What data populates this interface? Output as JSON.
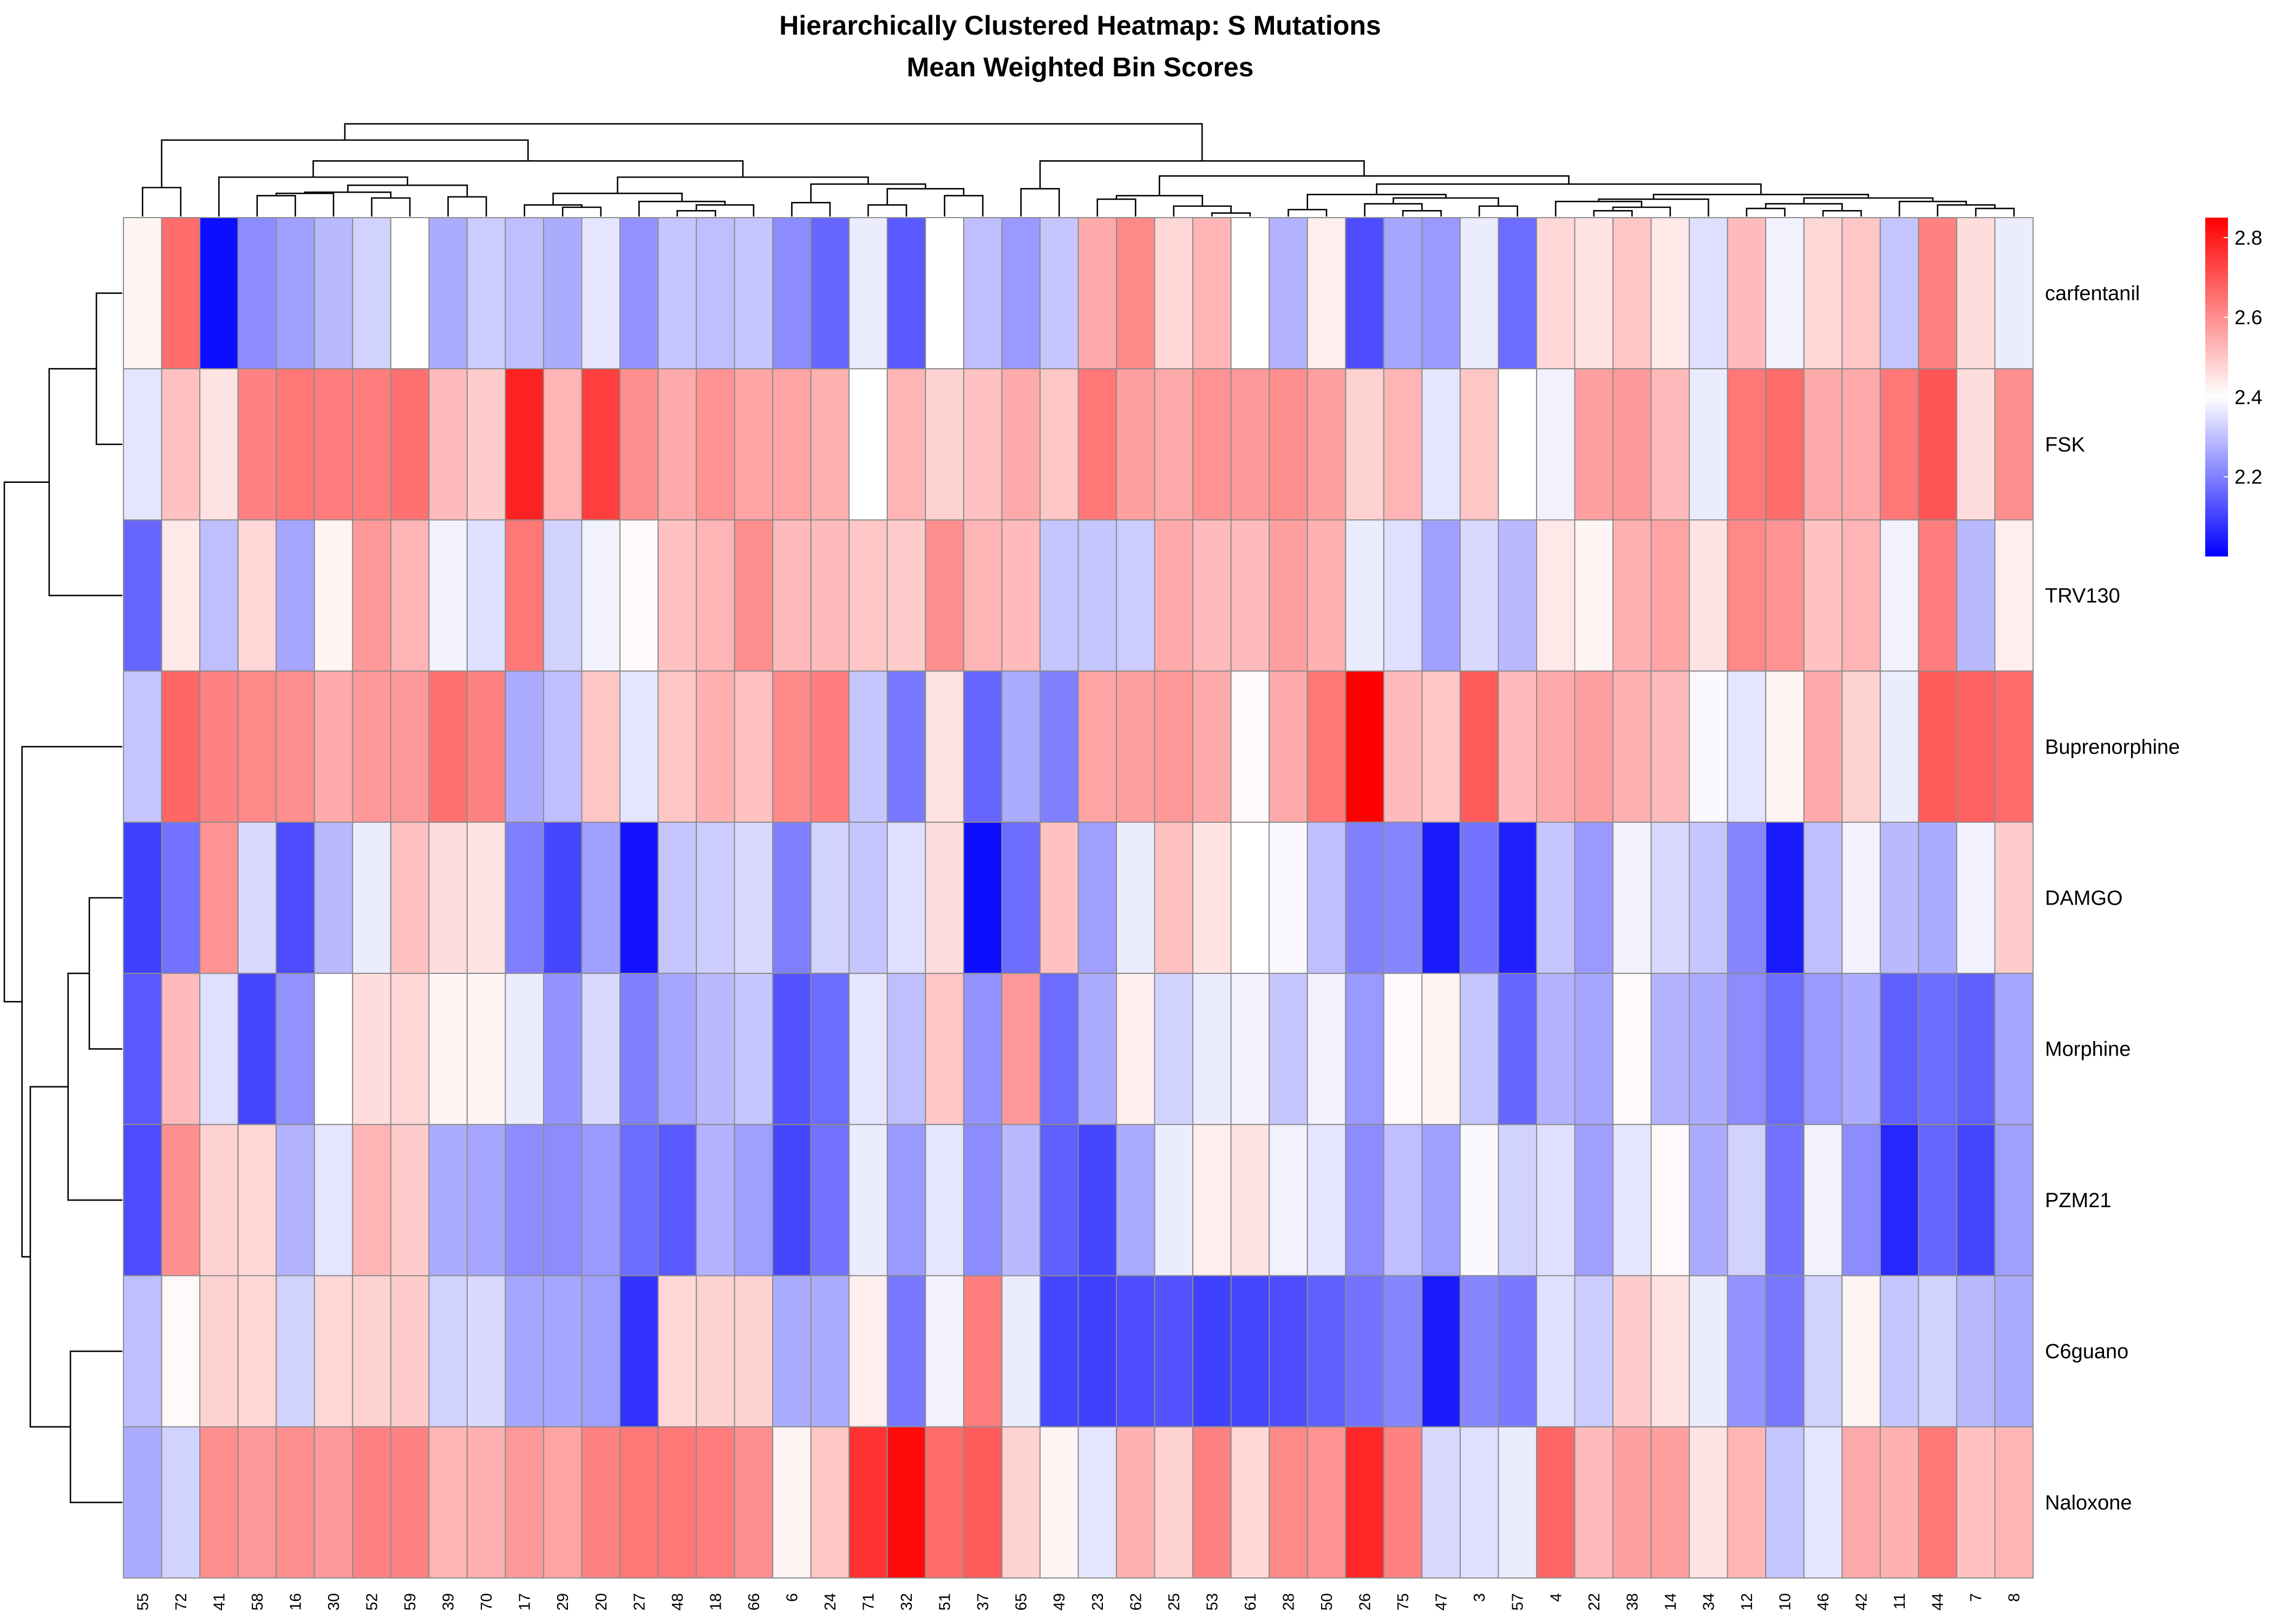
{
  "chart_data": {
    "type": "heatmap",
    "title": "Hierarchically Clustered Heatmap: S Mutations",
    "subtitle": "Mean Weighted Bin Scores",
    "rows": [
      "carfentanil",
      "FSK",
      "TRV130",
      "Buprenorphine",
      "DAMGO",
      "Morphine",
      "PZM21",
      "C6guano",
      "Naloxone"
    ],
    "columns": [
      "55",
      "72",
      "41",
      "58",
      "16",
      "30",
      "52",
      "59",
      "39",
      "70",
      "17",
      "29",
      "20",
      "27",
      "48",
      "18",
      "66",
      "6",
      "24",
      "71",
      "32",
      "51",
      "37",
      "65",
      "49",
      "23",
      "62",
      "25",
      "53",
      "61",
      "28",
      "50",
      "26",
      "75",
      "47",
      "3",
      "57",
      "4",
      "22",
      "38",
      "14",
      "34",
      "12",
      "10",
      "46",
      "42",
      "11",
      "44",
      "7",
      "8"
    ],
    "values": [
      [
        2.42,
        2.66,
        2.02,
        2.22,
        2.25,
        2.29,
        2.33,
        2.4,
        2.27,
        2.32,
        2.3,
        2.27,
        2.36,
        2.23,
        2.31,
        2.3,
        2.31,
        2.22,
        2.16,
        2.37,
        2.14,
        2.4,
        2.3,
        2.24,
        2.31,
        2.55,
        2.61,
        2.47,
        2.53,
        2.4,
        2.28,
        2.43,
        2.12,
        2.26,
        2.24,
        2.37,
        2.17,
        2.47,
        2.45,
        2.5,
        2.44,
        2.35,
        2.52,
        2.38,
        2.47,
        2.5,
        2.31,
        2.62,
        2.46,
        2.37
      ],
      [
        2.36,
        2.51,
        2.45,
        2.62,
        2.64,
        2.63,
        2.63,
        2.65,
        2.52,
        2.49,
        2.79,
        2.53,
        2.74,
        2.6,
        2.55,
        2.59,
        2.56,
        2.56,
        2.54,
        2.4,
        2.53,
        2.48,
        2.51,
        2.55,
        2.5,
        2.64,
        2.57,
        2.55,
        2.59,
        2.58,
        2.6,
        2.57,
        2.48,
        2.53,
        2.36,
        2.5,
        2.4,
        2.38,
        2.57,
        2.58,
        2.52,
        2.37,
        2.64,
        2.66,
        2.55,
        2.55,
        2.64,
        2.7,
        2.46,
        2.6
      ],
      [
        2.16,
        2.44,
        2.3,
        2.47,
        2.26,
        2.42,
        2.58,
        2.53,
        2.38,
        2.35,
        2.64,
        2.33,
        2.38,
        2.41,
        2.51,
        2.53,
        2.6,
        2.52,
        2.52,
        2.5,
        2.49,
        2.6,
        2.53,
        2.52,
        2.31,
        2.31,
        2.32,
        2.55,
        2.52,
        2.52,
        2.57,
        2.54,
        2.37,
        2.35,
        2.25,
        2.34,
        2.29,
        2.44,
        2.42,
        2.54,
        2.56,
        2.45,
        2.61,
        2.59,
        2.51,
        2.53,
        2.38,
        2.63,
        2.29,
        2.43
      ],
      [
        2.31,
        2.67,
        2.62,
        2.61,
        2.6,
        2.55,
        2.58,
        2.58,
        2.65,
        2.62,
        2.27,
        2.3,
        2.5,
        2.36,
        2.5,
        2.54,
        2.51,
        2.61,
        2.63,
        2.31,
        2.19,
        2.45,
        2.16,
        2.27,
        2.2,
        2.56,
        2.57,
        2.58,
        2.55,
        2.41,
        2.55,
        2.64,
        2.85,
        2.52,
        2.5,
        2.69,
        2.52,
        2.55,
        2.57,
        2.54,
        2.52,
        2.39,
        2.36,
        2.42,
        2.55,
        2.48,
        2.37,
        2.69,
        2.68,
        2.66
      ],
      [
        2.1,
        2.18,
        2.59,
        2.34,
        2.12,
        2.29,
        2.37,
        2.51,
        2.46,
        2.45,
        2.2,
        2.11,
        2.25,
        2.03,
        2.31,
        2.32,
        2.34,
        2.2,
        2.33,
        2.31,
        2.35,
        2.46,
        2.02,
        2.17,
        2.51,
        2.25,
        2.37,
        2.51,
        2.45,
        2.4,
        2.39,
        2.3,
        2.2,
        2.21,
        2.04,
        2.18,
        2.05,
        2.31,
        2.24,
        2.38,
        2.34,
        2.31,
        2.21,
        2.04,
        2.3,
        2.38,
        2.29,
        2.27,
        2.38,
        2.49
      ],
      [
        2.14,
        2.52,
        2.35,
        2.11,
        2.23,
        2.4,
        2.46,
        2.47,
        2.42,
        2.42,
        2.37,
        2.23,
        2.34,
        2.2,
        2.26,
        2.29,
        2.31,
        2.13,
        2.17,
        2.36,
        2.3,
        2.5,
        2.23,
        2.58,
        2.17,
        2.27,
        2.43,
        2.33,
        2.37,
        2.38,
        2.31,
        2.38,
        2.24,
        2.41,
        2.42,
        2.31,
        2.16,
        2.28,
        2.26,
        2.41,
        2.28,
        2.27,
        2.22,
        2.17,
        2.24,
        2.27,
        2.15,
        2.17,
        2.15,
        2.26
      ],
      [
        2.12,
        2.6,
        2.48,
        2.47,
        2.28,
        2.36,
        2.53,
        2.49,
        2.27,
        2.26,
        2.22,
        2.22,
        2.24,
        2.17,
        2.14,
        2.28,
        2.25,
        2.11,
        2.18,
        2.37,
        2.24,
        2.36,
        2.22,
        2.29,
        2.15,
        2.11,
        2.27,
        2.37,
        2.43,
        2.45,
        2.38,
        2.36,
        2.22,
        2.3,
        2.25,
        2.39,
        2.33,
        2.35,
        2.25,
        2.36,
        2.41,
        2.27,
        2.33,
        2.18,
        2.38,
        2.22,
        2.06,
        2.16,
        2.11,
        2.25
      ],
      [
        2.3,
        2.41,
        2.48,
        2.47,
        2.33,
        2.47,
        2.48,
        2.49,
        2.33,
        2.34,
        2.26,
        2.26,
        2.25,
        2.08,
        2.47,
        2.48,
        2.48,
        2.27,
        2.27,
        2.43,
        2.19,
        2.38,
        2.63,
        2.37,
        2.11,
        2.1,
        2.12,
        2.13,
        2.1,
        2.11,
        2.12,
        2.15,
        2.18,
        2.21,
        2.04,
        2.21,
        2.19,
        2.35,
        2.32,
        2.49,
        2.45,
        2.37,
        2.23,
        2.19,
        2.33,
        2.42,
        2.31,
        2.33,
        2.29,
        2.27
      ],
      [
        2.27,
        2.33,
        2.6,
        2.58,
        2.6,
        2.58,
        2.62,
        2.62,
        2.53,
        2.54,
        2.58,
        2.56,
        2.62,
        2.64,
        2.64,
        2.63,
        2.6,
        2.42,
        2.5,
        2.76,
        2.83,
        2.66,
        2.69,
        2.48,
        2.42,
        2.36,
        2.54,
        2.48,
        2.62,
        2.47,
        2.61,
        2.59,
        2.78,
        2.62,
        2.34,
        2.35,
        2.37,
        2.67,
        2.52,
        2.57,
        2.57,
        2.45,
        2.53,
        2.31,
        2.36,
        2.55,
        2.54,
        2.64,
        2.51,
        2.53
      ]
    ],
    "colorscale": {
      "low": "#0000ff",
      "mid": "#ffffff",
      "high": "#ff0000",
      "min": 2.0,
      "mid_value": 2.4,
      "max": 2.85
    },
    "legend_ticks": [
      "2.2",
      "2.4",
      "2.6",
      "2.8"
    ],
    "legend_tick_values": [
      2.2,
      2.4,
      2.6,
      2.8
    ],
    "legend_placement": "right",
    "row_dendrogram": [
      {
        "l": 0,
        "r": 1,
        "h": 0.22
      },
      {
        "l": 9,
        "r": 2,
        "h": 0.62
      },
      {
        "l": 4,
        "r": 5,
        "h": 0.28
      },
      {
        "l": 11,
        "r": 6,
        "h": 0.46
      },
      {
        "l": 7,
        "r": 8,
        "h": 0.44
      },
      {
        "l": 12,
        "r": 13,
        "h": 0.78
      },
      {
        "l": 3,
        "r": 14,
        "h": 0.85
      },
      {
        "l": 10,
        "r": 15,
        "h": 1.0
      }
    ],
    "col_dendrogram": [
      {
        "l": 0,
        "r": 1,
        "h": 0.25
      },
      {
        "l": 3,
        "r": 4,
        "h": 0.18
      },
      {
        "l": 51,
        "r": 5,
        "h": 0.2
      },
      {
        "l": 6,
        "r": 7,
        "h": 0.16
      },
      {
        "l": 52,
        "r": 53,
        "h": 0.21
      },
      {
        "l": 8,
        "r": 9,
        "h": 0.17
      },
      {
        "l": 54,
        "r": 55,
        "h": 0.27
      },
      {
        "l": 2,
        "r": 56,
        "h": 0.34
      },
      {
        "l": 11,
        "r": 12,
        "h": 0.08
      },
      {
        "l": 10,
        "r": 58,
        "h": 0.1
      },
      {
        "l": 14,
        "r": 15,
        "h": 0.05
      },
      {
        "l": 60,
        "r": 16,
        "h": 0.1
      },
      {
        "l": 13,
        "r": 61,
        "h": 0.13
      },
      {
        "l": 59,
        "r": 62,
        "h": 0.2
      },
      {
        "l": 17,
        "r": 18,
        "h": 0.12
      },
      {
        "l": 19,
        "r": 20,
        "h": 0.1
      },
      {
        "l": 21,
        "r": 22,
        "h": 0.18
      },
      {
        "l": 65,
        "r": 66,
        "h": 0.24
      },
      {
        "l": 64,
        "r": 67,
        "h": 0.28
      },
      {
        "l": 63,
        "r": 68,
        "h": 0.34
      },
      {
        "l": 57,
        "r": 69,
        "h": 0.48
      },
      {
        "l": 50,
        "r": 70,
        "h": 0.66
      },
      {
        "l": 23,
        "r": 24,
        "h": 0.24
      },
      {
        "l": 25,
        "r": 26,
        "h": 0.15
      },
      {
        "l": 28,
        "r": 29,
        "h": 0.03
      },
      {
        "l": 27,
        "r": 74,
        "h": 0.09
      },
      {
        "l": 73,
        "r": 75,
        "h": 0.18
      },
      {
        "l": 30,
        "r": 31,
        "h": 0.06
      },
      {
        "l": 33,
        "r": 34,
        "h": 0.05
      },
      {
        "l": 32,
        "r": 78,
        "h": 0.11
      },
      {
        "l": 35,
        "r": 36,
        "h": 0.09
      },
      {
        "l": 79,
        "r": 80,
        "h": 0.16
      },
      {
        "l": 77,
        "r": 81,
        "h": 0.19
      },
      {
        "l": 38,
        "r": 39,
        "h": 0.05
      },
      {
        "l": 83,
        "r": 40,
        "h": 0.08
      },
      {
        "l": 37,
        "r": 84,
        "h": 0.13
      },
      {
        "l": 85,
        "r": 41,
        "h": 0.15
      },
      {
        "l": 42,
        "r": 43,
        "h": 0.07
      },
      {
        "l": 44,
        "r": 45,
        "h": 0.05
      },
      {
        "l": 87,
        "r": 88,
        "h": 0.11
      },
      {
        "l": 48,
        "r": 49,
        "h": 0.07
      },
      {
        "l": 47,
        "r": 90,
        "h": 0.1
      },
      {
        "l": 46,
        "r": 91,
        "h": 0.13
      },
      {
        "l": 89,
        "r": 92,
        "h": 0.16
      },
      {
        "l": 86,
        "r": 93,
        "h": 0.19
      },
      {
        "l": 82,
        "r": 94,
        "h": 0.28
      },
      {
        "l": 76,
        "r": 95,
        "h": 0.35
      },
      {
        "l": 72,
        "r": 96,
        "h": 0.48
      },
      {
        "l": 71,
        "r": 97,
        "h": 0.8
      }
    ]
  }
}
